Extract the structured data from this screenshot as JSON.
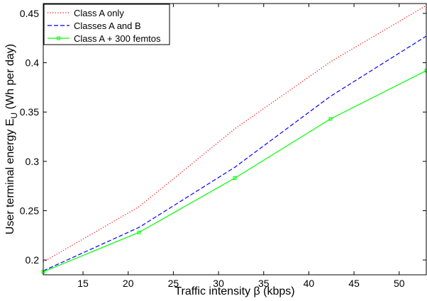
{
  "chart_data": {
    "type": "line",
    "title": "",
    "xlabel": "Traffic intensity β (kbps)",
    "ylabel": "User terminal energy E",
    "ylabel_subscript": "U",
    "ylabel_suffix": " (Wh per day)",
    "xlim": [
      10.6,
      53
    ],
    "ylim": [
      0.185,
      0.46
    ],
    "xticks": [
      15,
      20,
      25,
      30,
      35,
      40,
      45,
      50
    ],
    "yticks": [
      0.2,
      0.25,
      0.3,
      0.35,
      0.4,
      0.45
    ],
    "ytick_labels": [
      "0.2",
      "0.25",
      "0.3",
      "0.35",
      "0.4",
      "0.45"
    ],
    "grid": false,
    "legend_position": "top-left",
    "series": [
      {
        "name": "Class A only",
        "color": "#ff0000",
        "style": "dotted",
        "marker": "none",
        "x": [
          10.6,
          21.2,
          31.8,
          42.4,
          53
        ],
        "y": [
          0.198,
          0.254,
          0.333,
          0.401,
          0.458
        ]
      },
      {
        "name": "Classes A and B",
        "color": "#0000ff",
        "style": "dashed",
        "marker": "none",
        "x": [
          10.6,
          21.2,
          31.8,
          42.4,
          53
        ],
        "y": [
          0.189,
          0.233,
          0.294,
          0.366,
          0.427
        ]
      },
      {
        "name": "Class A + 300 femtos",
        "color": "#00ff00",
        "style": "solid",
        "marker": "square",
        "x": [
          10.6,
          21.2,
          31.8,
          42.4,
          53
        ],
        "y": [
          0.188,
          0.228,
          0.283,
          0.343,
          0.392
        ]
      }
    ]
  }
}
